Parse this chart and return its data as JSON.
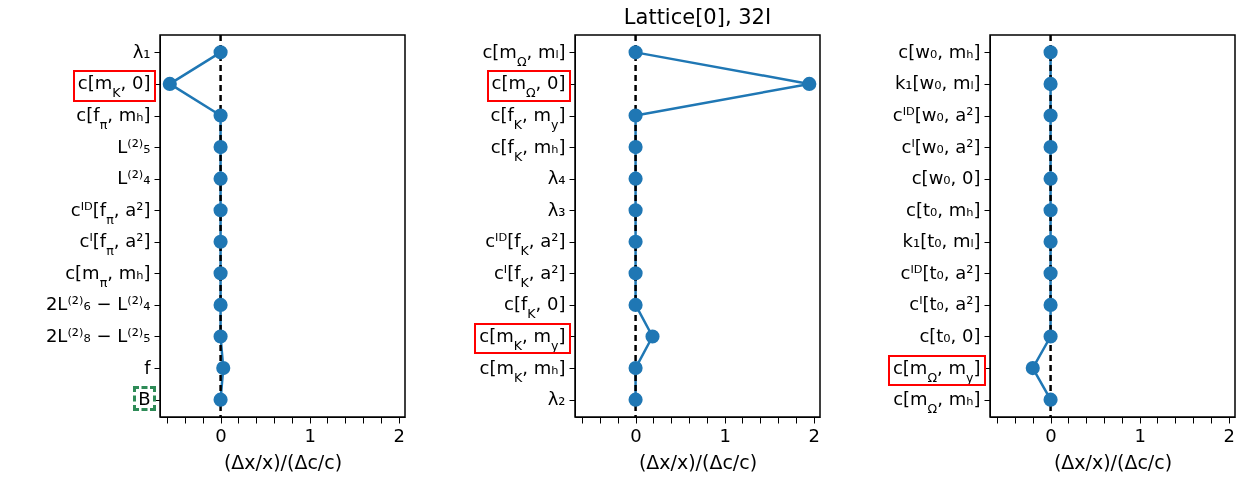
{
  "chart_data": [
    {
      "type": "line",
      "orientation": "horizontal",
      "xlabel": "(Δx/x)/(Δc/c)",
      "categories": [
        "λ₁",
        "c[m$_{K}$, 0]",
        "c[f$_{π}$, mₕ]",
        "L⁽²⁾₅",
        "L⁽²⁾₄",
        "cᴵᴰ[f$_{π}$, a²]",
        "cᴵ[f$_{π}$, a²]",
        "c[m$_{π}$, mₕ]",
        "2L⁽²⁾₆ − L⁽²⁾₄",
        "2L⁽²⁾₈ − L⁽²⁾₅",
        "f",
        "B"
      ],
      "series": [
        {
          "color": "#1f77b4",
          "values": [
            0,
            -0.57,
            0,
            0,
            0,
            0,
            0,
            0,
            0,
            0,
            0.03,
            0
          ]
        }
      ],
      "xlim": [
        -0.68,
        2.07
      ],
      "xticks": [
        {
          "value": -0.6,
          "label": null
        },
        {
          "value": -0.4,
          "label": null
        },
        {
          "value": -0.2,
          "label": null
        },
        0,
        {
          "value": 0.2,
          "label": null
        },
        {
          "value": 0.4,
          "label": null
        },
        {
          "value": 0.6,
          "label": null
        },
        {
          "value": 0.8,
          "label": null
        },
        1,
        {
          "value": 1.2,
          "label": null
        },
        {
          "value": 1.4,
          "label": null
        },
        {
          "value": 1.6,
          "label": null
        },
        {
          "value": 1.8,
          "label": null
        },
        2
      ],
      "ref_lines": [
        {
          "axis": "x",
          "value": 0,
          "color": "#000000",
          "line_style": "dashed"
        }
      ],
      "marker": "circle",
      "line_style": "solid"
    },
    {
      "type": "line",
      "orientation": "horizontal",
      "title": "Lattice[0], 32I",
      "xlabel": "(Δx/x)/(Δc/c)",
      "categories": [
        "c[m$_{Ω}$, mₗ]",
        "c[m$_{Ω}$, 0]",
        "c[f$_{K}$, m$_{y}$]",
        "c[f$_{K}$, mₕ]",
        "λ₄",
        "λ₃",
        "cᴵᴰ[f$_{K}$, a²]",
        "cᴵ[f$_{K}$, a²]",
        "c[f$_{K}$, 0]",
        "c[m$_{K}$, m$_{y}$]",
        "c[m$_{K}$, mₕ]",
        "λ₂"
      ],
      "series": [
        {
          "color": "#1f77b4",
          "values": [
            0,
            1.95,
            0,
            0,
            0,
            0,
            0,
            0,
            0,
            0.19,
            0,
            0
          ]
        }
      ],
      "xlim": [
        -0.68,
        2.07
      ],
      "xticks": [
        {
          "value": -0.6,
          "label": null
        },
        {
          "value": -0.4,
          "label": null
        },
        {
          "value": -0.2,
          "label": null
        },
        0,
        {
          "value": 0.2,
          "label": null
        },
        {
          "value": 0.4,
          "label": null
        },
        {
          "value": 0.6,
          "label": null
        },
        {
          "value": 0.8,
          "label": null
        },
        1,
        {
          "value": 1.2,
          "label": null
        },
        {
          "value": 1.4,
          "label": null
        },
        {
          "value": 1.6,
          "label": null
        },
        {
          "value": 1.8,
          "label": null
        },
        2
      ],
      "ref_lines": [
        {
          "axis": "x",
          "value": 0,
          "color": "#000000",
          "line_style": "dashed"
        }
      ],
      "marker": "circle",
      "line_style": "solid"
    },
    {
      "type": "line",
      "orientation": "horizontal",
      "xlabel": "(Δx/x)/(Δc/c)",
      "categories": [
        "c[w₀, mₕ]",
        "k₁[w₀, mₗ]",
        "cᴵᴰ[w₀, a²]",
        "cᴵ[w₀, a²]",
        "c[w₀, 0]",
        "c[t₀, mₕ]",
        "k₁[t₀, mₗ]",
        "cᴵᴰ[t₀, a²]",
        "cᴵ[t₀, a²]",
        "c[t₀, 0]",
        "c[m$_{Ω}$, m$_{y}$]",
        "c[m$_{Ω}$, mₕ]"
      ],
      "series": [
        {
          "color": "#1f77b4",
          "values": [
            0,
            0,
            0,
            0,
            0,
            0,
            0,
            0,
            0,
            0,
            -0.2,
            0
          ]
        }
      ],
      "xlim": [
        -0.68,
        2.07
      ],
      "xticks": [
        {
          "value": -0.6,
          "label": null
        },
        {
          "value": -0.4,
          "label": null
        },
        {
          "value": -0.2,
          "label": null
        },
        0,
        {
          "value": 0.2,
          "label": null
        },
        {
          "value": 0.4,
          "label": null
        },
        {
          "value": 0.6,
          "label": null
        },
        {
          "value": 0.8,
          "label": null
        },
        1,
        {
          "value": 1.2,
          "label": null
        },
        {
          "value": 1.4,
          "label": null
        },
        {
          "value": 1.6,
          "label": null
        },
        {
          "value": 1.8,
          "label": null
        },
        2
      ],
      "ref_lines": [
        {
          "axis": "x",
          "value": 0,
          "color": "#000000",
          "line_style": "dashed"
        }
      ],
      "marker": "circle",
      "line_style": "solid"
    }
  ]
}
